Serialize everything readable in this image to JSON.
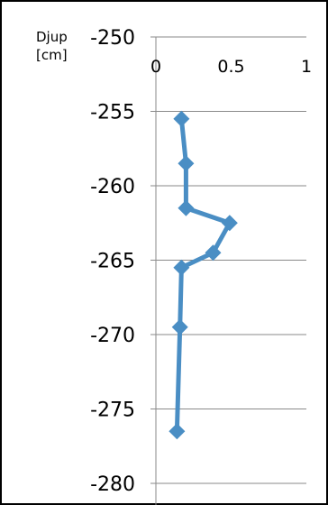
{
  "chart_data": {
    "type": "line",
    "ylabel_lines": [
      "Djup",
      "[cm]"
    ],
    "xlim": [
      0,
      1
    ],
    "ylim": [
      -280,
      -250
    ],
    "x_ticks": [
      "0",
      "0.5",
      "1"
    ],
    "y_ticks": [
      "-250",
      "-255",
      "-260",
      "-265",
      "-270",
      "-275",
      "-280"
    ],
    "series": [
      {
        "color": "#4a8ec4",
        "points": [
          {
            "x": 0.17,
            "y": -255.5
          },
          {
            "x": 0.2,
            "y": -258.5
          },
          {
            "x": 0.2,
            "y": -261.5
          },
          {
            "x": 0.49,
            "y": -262.5
          },
          {
            "x": 0.38,
            "y": -264.5
          },
          {
            "x": 0.17,
            "y": -265.5
          },
          {
            "x": 0.16,
            "y": -269.5
          },
          {
            "x": 0.14,
            "y": -276.5
          }
        ]
      }
    ],
    "grid": "horizontal"
  }
}
